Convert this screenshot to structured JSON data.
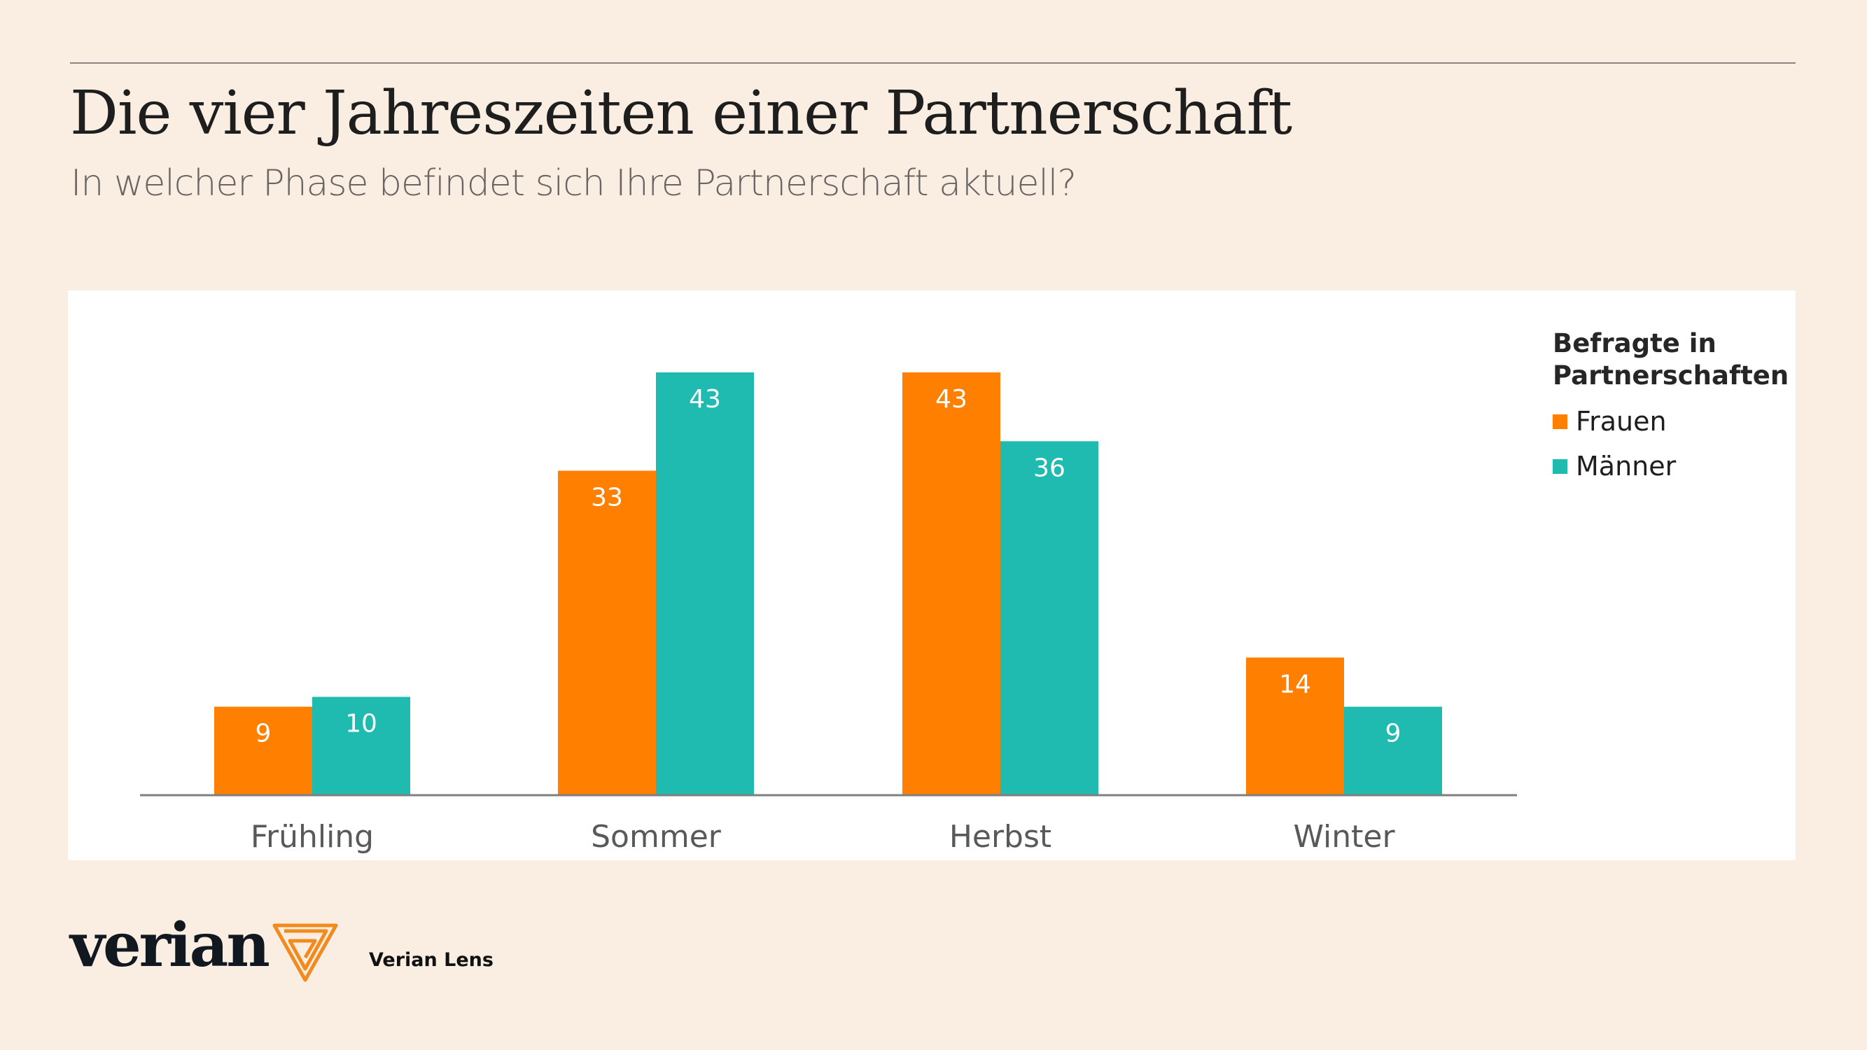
{
  "header": {
    "title": "Die vier Jahreszeiten einer Partnerschaft",
    "subtitle": "In welcher Phase befindet sich Ihre Partnerschaft aktuell?"
  },
  "chart_data": {
    "type": "bar",
    "categories": [
      "Frühling",
      "Sommer",
      "Herbst",
      "Winter"
    ],
    "series": [
      {
        "name": "Frauen",
        "values": [
          9,
          33,
          43,
          14
        ],
        "color": "#ff7f00"
      },
      {
        "name": "Männer",
        "values": [
          10,
          43,
          36,
          9
        ],
        "color": "#20bbb0"
      }
    ],
    "legend_title": "Befragte in Partnerschaften",
    "legend_position": "right",
    "ylim": [
      0,
      43
    ],
    "grid": false,
    "data_labels": true
  },
  "footer": {
    "logo": "verian",
    "product": "Verian Lens"
  },
  "colors": {
    "background": "#faeee3",
    "logo_accent": "#f28a1e"
  }
}
